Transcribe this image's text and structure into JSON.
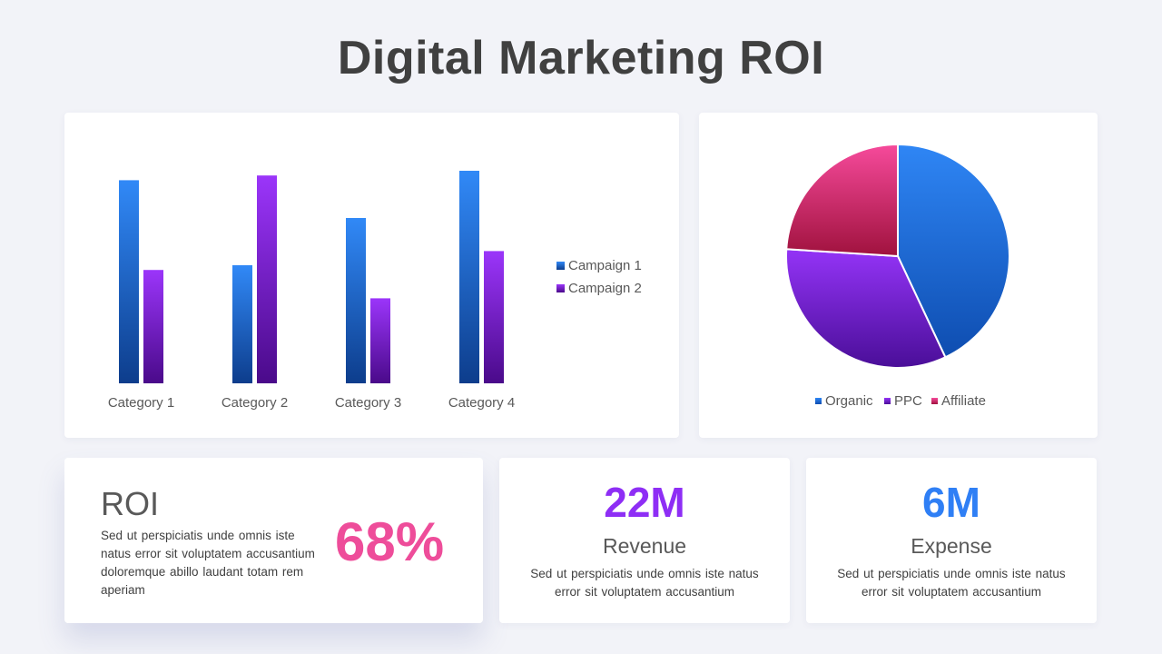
{
  "page": {
    "title": "Digital Marketing ROI"
  },
  "chart_data": [
    {
      "type": "bar",
      "categories": [
        "Category 1",
        "Category 2",
        "Category 3",
        "Category 4"
      ],
      "series": [
        {
          "name": "Campaign 1",
          "values": [
            4.3,
            2.5,
            3.5,
            4.5
          ],
          "color": "#2f7ff5"
        },
        {
          "name": "Campaign 2",
          "values": [
            2.4,
            4.4,
            1.8,
            2.8
          ],
          "color": "#8e2ef5"
        }
      ],
      "ylim": [
        0,
        5
      ],
      "grid": false,
      "legend": "right",
      "title": "",
      "xlabel": "",
      "ylabel": ""
    },
    {
      "type": "pie",
      "labels": [
        "Organic",
        "PPC",
        "Affiliate"
      ],
      "values": [
        43,
        33,
        24
      ],
      "colors": [
        "#2f7ff5",
        "#8e2ef5",
        "#f04a8f"
      ],
      "legend": "bottom",
      "title": ""
    }
  ],
  "stats": {
    "roi": {
      "label": "ROI",
      "value": "68%",
      "desc": "Sed ut perspiciatis  unde omnis iste  natus error  sit  voluptatem accusantium  doloremque  abillo laudant totam  rem aperiam",
      "color": "#ee4d9a"
    },
    "revenue": {
      "value": "22M",
      "label": "Revenue",
      "desc": "Sed ut perspiciatis  unde omnis  iste natus error  sit  voluptatem  accusantium",
      "color": "#8e2ef5"
    },
    "expense": {
      "value": "6M",
      "label": "Expense",
      "desc": "Sed ut perspiciatis  unde omnis  iste natus error  sit  voluptatem  accusantium",
      "color": "#2f7ff5"
    }
  }
}
